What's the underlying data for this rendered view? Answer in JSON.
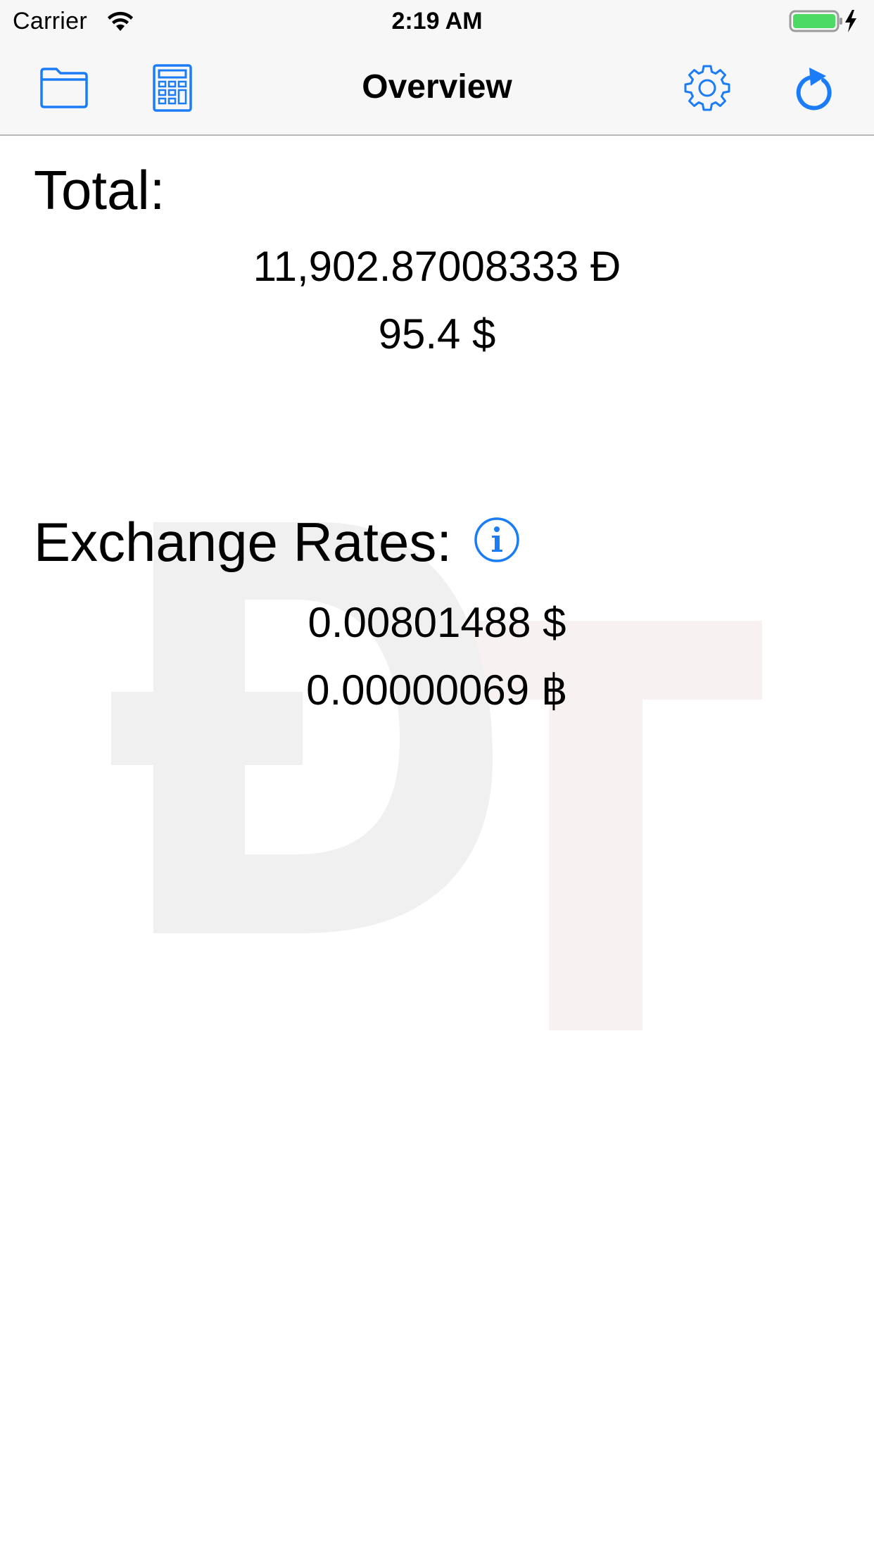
{
  "status_bar": {
    "carrier": "Carrier",
    "time": "2:19 AM",
    "icons": [
      "wifi-icon",
      "battery-icon",
      "charging-bolt-icon"
    ]
  },
  "nav_bar": {
    "title": "Overview",
    "left_icons": [
      "folder-icon",
      "calculator-icon"
    ],
    "right_icons": [
      "gear-icon",
      "refresh-icon"
    ]
  },
  "total": {
    "heading": "Total:",
    "doge_amount": "11,902.87008333 Đ",
    "usd_amount": "95.4 $"
  },
  "exchange_rates": {
    "heading": "Exchange Rates:",
    "info_icon": "info-icon",
    "usd_rate": "0.00801488 $",
    "btc_rate": "0.00000069 ฿"
  },
  "watermark": {
    "logo_text": "ĐT",
    "description_icon": "app-logo-watermark"
  },
  "colors": {
    "accent": "#1a7cf6",
    "bar_background": "#f7f7f7",
    "separator": "#b8b8bc",
    "battery_fill": "#4cd964",
    "watermark_d": "#f0f0f0",
    "watermark_t": "#f7f1f1"
  }
}
